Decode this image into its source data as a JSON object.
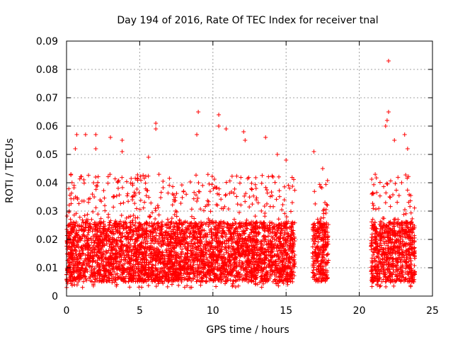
{
  "chart_data": {
    "type": "scatter",
    "title": "Day 194 of 2016, Rate Of TEC Index for receiver tnal",
    "xlabel": "GPS time / hours",
    "ylabel": "ROTI / TECUs",
    "xlim": [
      0,
      25
    ],
    "ylim": [
      0,
      0.09
    ],
    "xticks": [
      0,
      5,
      10,
      15,
      20,
      25
    ],
    "yticks": [
      0,
      0.01,
      0.02,
      0.03,
      0.04,
      0.05,
      0.06,
      0.07,
      0.08,
      0.09
    ],
    "xtick_labels": [
      "0",
      "5",
      "10",
      "15",
      "20",
      "25"
    ],
    "ytick_labels": [
      "0",
      "0.01",
      "0.02",
      "0.03",
      "0.04",
      "0.05",
      "0.06",
      "0.07",
      "0.08",
      "0.09"
    ],
    "grid": true,
    "marker": "+",
    "color": "#ff0000",
    "series": [
      {
        "name": "ROTI",
        "coverage_hours": [
          [
            0.0,
            15.6
          ],
          [
            16.8,
            17.9
          ],
          [
            20.8,
            23.8
          ]
        ],
        "typical_range": [
          0.005,
          0.03
        ],
        "notable_points": [
          {
            "x": 0.3,
            "y": 0.043
          },
          {
            "x": 0.6,
            "y": 0.052
          },
          {
            "x": 0.7,
            "y": 0.057
          },
          {
            "x": 1.3,
            "y": 0.057
          },
          {
            "x": 2.0,
            "y": 0.057
          },
          {
            "x": 2.0,
            "y": 0.052
          },
          {
            "x": 3.0,
            "y": 0.056
          },
          {
            "x": 3.8,
            "y": 0.055
          },
          {
            "x": 3.8,
            "y": 0.051
          },
          {
            "x": 6.1,
            "y": 0.061
          },
          {
            "x": 6.1,
            "y": 0.059
          },
          {
            "x": 5.6,
            "y": 0.049
          },
          {
            "x": 9.0,
            "y": 0.065
          },
          {
            "x": 8.9,
            "y": 0.057
          },
          {
            "x": 10.4,
            "y": 0.064
          },
          {
            "x": 10.4,
            "y": 0.06
          },
          {
            "x": 10.9,
            "y": 0.059
          },
          {
            "x": 12.1,
            "y": 0.058
          },
          {
            "x": 12.2,
            "y": 0.055
          },
          {
            "x": 13.6,
            "y": 0.056
          },
          {
            "x": 14.4,
            "y": 0.05
          },
          {
            "x": 15.0,
            "y": 0.048
          },
          {
            "x": 16.9,
            "y": 0.051
          },
          {
            "x": 17.5,
            "y": 0.045
          },
          {
            "x": 22.0,
            "y": 0.083
          },
          {
            "x": 22.0,
            "y": 0.065
          },
          {
            "x": 21.9,
            "y": 0.062
          },
          {
            "x": 21.8,
            "y": 0.06
          },
          {
            "x": 22.4,
            "y": 0.055
          },
          {
            "x": 23.1,
            "y": 0.057
          },
          {
            "x": 23.3,
            "y": 0.052
          }
        ]
      }
    ]
  }
}
